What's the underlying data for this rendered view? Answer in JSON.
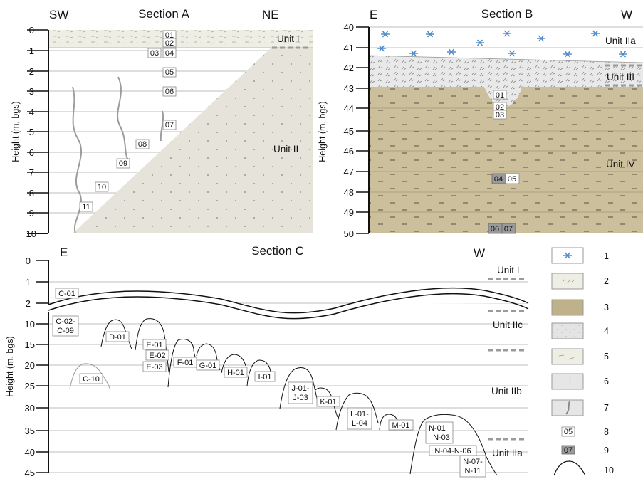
{
  "panels": {
    "a": {
      "title": "Section A",
      "left_dir": "SW",
      "right_dir": "NE",
      "y_label": "Height (m, bgs)",
      "y_ticks": [
        "0",
        "1",
        "2",
        "3",
        "4",
        "5",
        "6",
        "7",
        "8",
        "9",
        "10"
      ],
      "units": [
        "Unit I",
        "Unit II"
      ],
      "samples": [
        "01",
        "02",
        "03",
        "04",
        "05",
        "06",
        "07",
        "08",
        "09",
        "10",
        "11"
      ]
    },
    "b": {
      "title": "Section B",
      "left_dir": "E",
      "right_dir": "W",
      "y_label": "Height (m, bgs)",
      "y_ticks": [
        "40",
        "41",
        "42",
        "43",
        "44",
        "45",
        "46",
        "47",
        "48",
        "49",
        "50"
      ],
      "units": [
        "Unit IIa",
        "Unit III",
        "Unit IV"
      ],
      "samples": [
        "01",
        "02",
        "03",
        "04",
        "05",
        "06",
        "07"
      ]
    },
    "c": {
      "title": "Section C",
      "left_dir": "E",
      "right_dir": "W",
      "y_label": "Height (m, bgs)",
      "y_ticks": [
        "0",
        "1",
        "2",
        "10",
        "15",
        "20",
        "25",
        "30",
        "35",
        "40",
        "45"
      ],
      "units": [
        "Unit I",
        "Unit IIc",
        "Unit IIb",
        "Unit IIa"
      ],
      "samples": [
        "C-01",
        "C-02-",
        "C-09",
        "C-10",
        "D-01",
        "E-01",
        "E-02",
        "E-03",
        "F-01",
        "G-01",
        "H-01",
        "I-01",
        "J-01-",
        "J-03",
        "K-01",
        "L-01-",
        "L-04",
        "M-01",
        "N-01",
        "N-03",
        "N-04-N-06",
        "N-07-",
        "N-11"
      ]
    }
  },
  "legend": [
    "1",
    "2",
    "3",
    "4",
    "5",
    "6",
    "7",
    "8",
    "9",
    "10"
  ],
  "legend_sample_codes": [
    "05",
    "07"
  ],
  "colors": {
    "unit_ii_fill": "#e6e4da",
    "unit_i_fill": "#eeeee4",
    "unit_iv_fill": "#cbc09b",
    "unit_iii_fill": "#e9e9e9",
    "star_blue": "#4a86c8",
    "dark_sample_box": "#9a9a9a"
  }
}
